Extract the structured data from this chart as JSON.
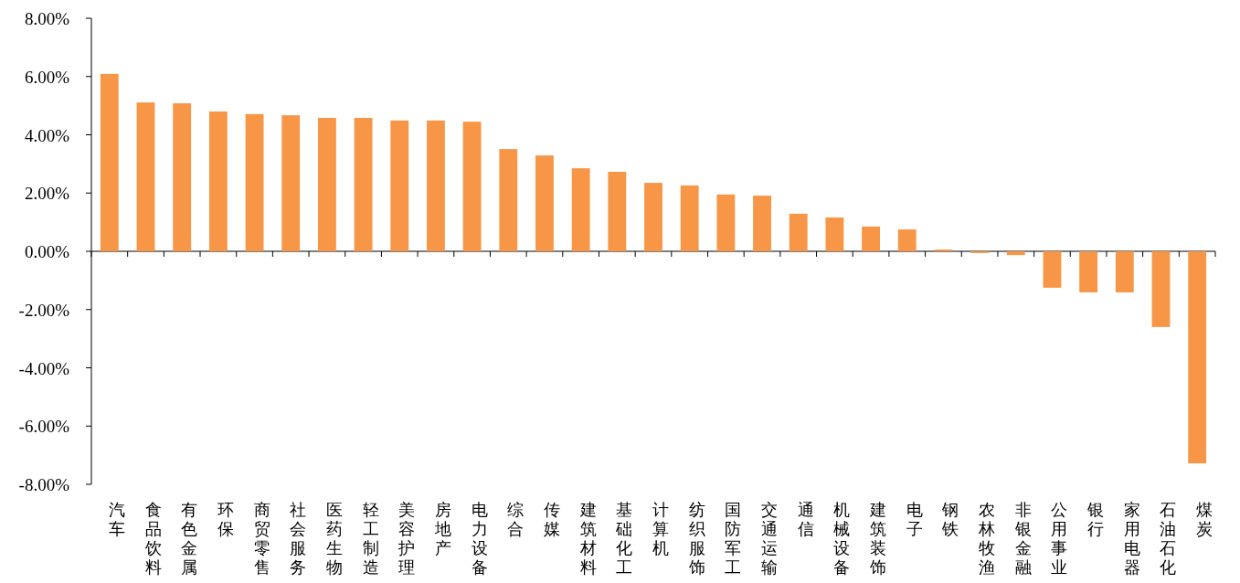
{
  "chart_data": {
    "type": "bar",
    "categories": [
      "汽车",
      "食品饮料",
      "有色金属",
      "环保",
      "商贸零售",
      "社会服务",
      "医药生物",
      "轻工制造",
      "美容护理",
      "房地产",
      "电力设备",
      "综合",
      "传媒",
      "建筑材料",
      "基础化工",
      "计算机",
      "纺织服饰",
      "国防军工",
      "交通运输",
      "通信",
      "机械设备",
      "建筑装饰",
      "电子",
      "钢铁",
      "农林牧渔",
      "非银金融",
      "公用事业",
      "银行",
      "家用电器",
      "石油石化",
      "煤炭"
    ],
    "values": [
      6.09,
      5.11,
      5.08,
      4.8,
      4.71,
      4.67,
      4.58,
      4.58,
      4.49,
      4.49,
      4.45,
      3.51,
      3.29,
      2.85,
      2.73,
      2.35,
      2.26,
      1.95,
      1.91,
      1.29,
      1.16,
      0.85,
      0.75,
      0.06,
      -0.06,
      -0.13,
      -1.25,
      -1.41,
      -1.41,
      -2.6,
      -7.28
    ],
    "color": "#f79646",
    "ylim": [
      -8,
      8
    ],
    "yticks": [
      {
        "value": -8,
        "label": "-8.00%"
      },
      {
        "value": -6,
        "label": "-6.00%"
      },
      {
        "value": -4,
        "label": "-4.00%"
      },
      {
        "value": -2,
        "label": "-2.00%"
      },
      {
        "value": 0,
        "label": "0.00%"
      },
      {
        "value": 2,
        "label": "2.00%"
      },
      {
        "value": 4,
        "label": "4.00%"
      },
      {
        "value": 6,
        "label": "6.00%"
      },
      {
        "value": 8,
        "label": "8.00%"
      }
    ],
    "legend": false
  }
}
